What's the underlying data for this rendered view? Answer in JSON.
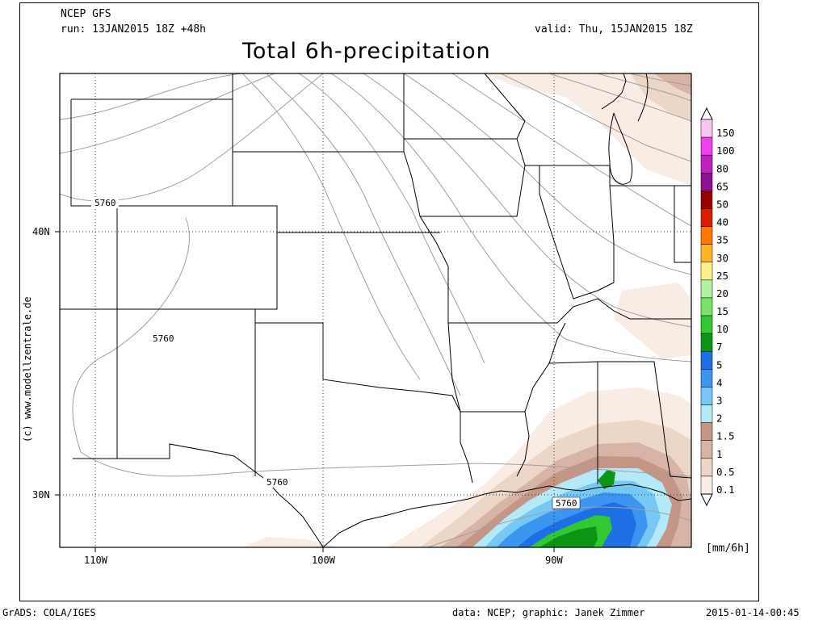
{
  "header": {
    "model": "NCEP GFS",
    "run": "run: 13JAN2015 18Z +48h",
    "valid": "valid: Thu, 15JAN2015 18Z",
    "title": "Total 6h-precipitation"
  },
  "credit": "(c) www.modellzentrale.de",
  "axes": {
    "lat_labels": [
      "40N",
      "30N"
    ],
    "lon_labels": [
      "110W",
      "100W",
      "90W"
    ]
  },
  "contour_label": "5760",
  "legend": {
    "units": "[mm/6h]",
    "items": [
      {
        "label": "150",
        "color": "#f7c6f0"
      },
      {
        "label": "100",
        "color": "#f040f0"
      },
      {
        "label": "80",
        "color": "#c020c0"
      },
      {
        "label": "65",
        "color": "#8c1090"
      },
      {
        "label": "50",
        "color": "#9a0000"
      },
      {
        "label": "40",
        "color": "#dc1e00"
      },
      {
        "label": "35",
        "color": "#ff7800"
      },
      {
        "label": "30",
        "color": "#ffb428"
      },
      {
        "label": "25",
        "color": "#fff08c"
      },
      {
        "label": "20",
        "color": "#b4f0a0"
      },
      {
        "label": "15",
        "color": "#78e664"
      },
      {
        "label": "10",
        "color": "#32c832"
      },
      {
        "label": "7",
        "color": "#0a9614"
      },
      {
        "label": "5",
        "color": "#1e6ee6"
      },
      {
        "label": "4",
        "color": "#3c96f0"
      },
      {
        "label": "3",
        "color": "#78c8f5"
      },
      {
        "label": "2",
        "color": "#b4eaf8"
      },
      {
        "label": "1.5",
        "color": "#c39686"
      },
      {
        "label": "1",
        "color": "#d7b4a5"
      },
      {
        "label": "0.5",
        "color": "#ebd6c8"
      },
      {
        "label": "0.1",
        "color": "#f8ece4"
      }
    ]
  },
  "footer": {
    "left": "GrADS: COLA/IGES",
    "middle": "data: NCEP; graphic: Janek Zimmer",
    "right": "2015-01-14-00:45"
  }
}
